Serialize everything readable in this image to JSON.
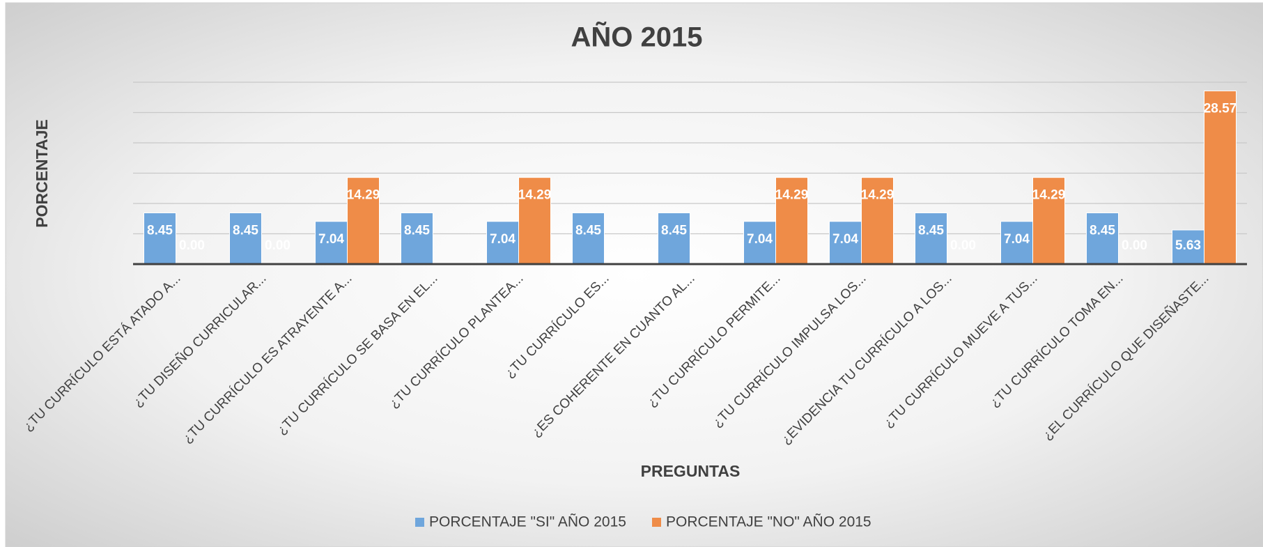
{
  "chart_data": {
    "type": "bar",
    "title": "AÑO 2015",
    "x_label": "PREGUNTAS",
    "y_label": "PORCENTAJE",
    "categories": [
      "¿TU CURRÍCULO ESTÁ ATADO A...",
      "¿TU DISEÑO CURRICULAR...",
      "¿TU CURRÍCULO ES ATRAYENTE A...",
      "¿TU CURRÍCULO SE BASA EN EL...",
      "¿TU CURRÍCULO PLANTEA...",
      "¿TU CURRÍCULO ES...",
      "¿ES COHERENTE EN CUANTO AL...",
      "¿TU CURRÍCULO PERMITE...",
      "¿TU CURRÍCULO IMPULSA LOS...",
      "¿EVIDENCIA TU CURRÍCULO A LOS...",
      "¿TU CURRÍCULO MUEVE A TUS...",
      "¿TU CURRÍCULO TOMA EN...",
      "¿EL CURRÍCULO QUE DISEÑASTE..."
    ],
    "series": [
      {
        "name": "PORCENTAJE \"SI\" AÑO 2015",
        "color": "#6fa6dc",
        "values": [
          8.45,
          8.45,
          7.04,
          8.45,
          7.04,
          8.45,
          8.45,
          7.04,
          7.04,
          8.45,
          7.04,
          8.45,
          5.63
        ]
      },
      {
        "name": "PORCENTAJE \"NO\" AÑO 2015",
        "color": "#ef8c48",
        "values": [
          0,
          0,
          14.29,
          null,
          14.29,
          null,
          null,
          14.29,
          14.29,
          0,
          14.29,
          0,
          28.57
        ],
        "value_labels": [
          "0.00",
          "0.00",
          "14.29",
          null,
          "14.29",
          null,
          null,
          "14.29",
          "14.29",
          "0.00",
          "14.29",
          "0.00",
          "28.57"
        ]
      }
    ],
    "ylim": [
      0,
      30
    ],
    "yticks": [
      0,
      5,
      10,
      15,
      20,
      25,
      30
    ],
    "grid": true,
    "legend": "bottom"
  }
}
